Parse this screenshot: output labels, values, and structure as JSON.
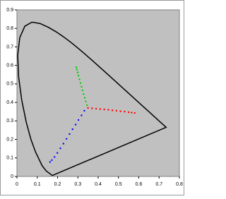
{
  "chart_data": {
    "type": "scatter",
    "xlim": [
      0,
      0.8
    ],
    "ylim": [
      0,
      0.9
    ],
    "xticks": [
      0,
      0.1,
      0.2,
      0.3,
      0.4,
      0.5,
      0.6,
      0.7,
      0.8
    ],
    "yticks": [
      0,
      0.1,
      0.2,
      0.3,
      0.4,
      0.5,
      0.6,
      0.7,
      0.8,
      0.9
    ],
    "background": "#c0c0c0",
    "series": [
      {
        "type": "line",
        "color": "#000000",
        "x": [
          0.1741,
          0.144,
          0.1241,
          0.0913,
          0.0687,
          0.0454,
          0.0235,
          0.0082,
          0.0039,
          0.0139,
          0.0389,
          0.0743,
          0.1142,
          0.1547,
          0.1929,
          0.2296,
          0.2658,
          0.3016,
          0.3373,
          0.3731,
          0.4087,
          0.4441,
          0.4788,
          0.5125,
          0.5448,
          0.5752,
          0.6029,
          0.627,
          0.6482,
          0.6658,
          0.6801,
          0.6915,
          0.7006,
          0.7347,
          0.1741
        ],
        "values": [
          0.005,
          0.0297,
          0.0578,
          0.1327,
          0.2007,
          0.295,
          0.4127,
          0.5384,
          0.6548,
          0.7502,
          0.812,
          0.8338,
          0.8262,
          0.8059,
          0.7816,
          0.7543,
          0.7243,
          0.6923,
          0.6589,
          0.6245,
          0.5896,
          0.5547,
          0.5202,
          0.4866,
          0.4544,
          0.4242,
          0.3965,
          0.3725,
          0.3514,
          0.334,
          0.3197,
          0.3083,
          0.2993,
          0.2653,
          0.005
        ]
      },
      {
        "type": "scatter",
        "color": "#00cc00",
        "x": [
          0.345,
          0.339,
          0.334,
          0.328,
          0.323,
          0.318,
          0.313,
          0.308,
          0.303,
          0.299,
          0.295,
          0.292
        ],
        "values": [
          0.385,
          0.405,
          0.425,
          0.445,
          0.465,
          0.485,
          0.505,
          0.525,
          0.545,
          0.562,
          0.578,
          0.59
        ]
      },
      {
        "type": "scatter",
        "color": "#ff0000",
        "x": [
          0.35,
          0.37,
          0.39,
          0.41,
          0.43,
          0.45,
          0.47,
          0.49,
          0.51,
          0.53,
          0.55,
          0.565,
          0.58
        ],
        "values": [
          0.37,
          0.368,
          0.366,
          0.364,
          0.362,
          0.36,
          0.357,
          0.355,
          0.352,
          0.35,
          0.347,
          0.345,
          0.343
        ]
      },
      {
        "type": "scatter",
        "color": "#0000ff",
        "x": [
          0.332,
          0.318,
          0.303,
          0.289,
          0.274,
          0.259,
          0.244,
          0.229,
          0.214,
          0.199,
          0.185,
          0.172,
          0.163
        ],
        "values": [
          0.355,
          0.33,
          0.305,
          0.28,
          0.255,
          0.229,
          0.203,
          0.177,
          0.152,
          0.127,
          0.105,
          0.088,
          0.078
        ]
      }
    ]
  }
}
